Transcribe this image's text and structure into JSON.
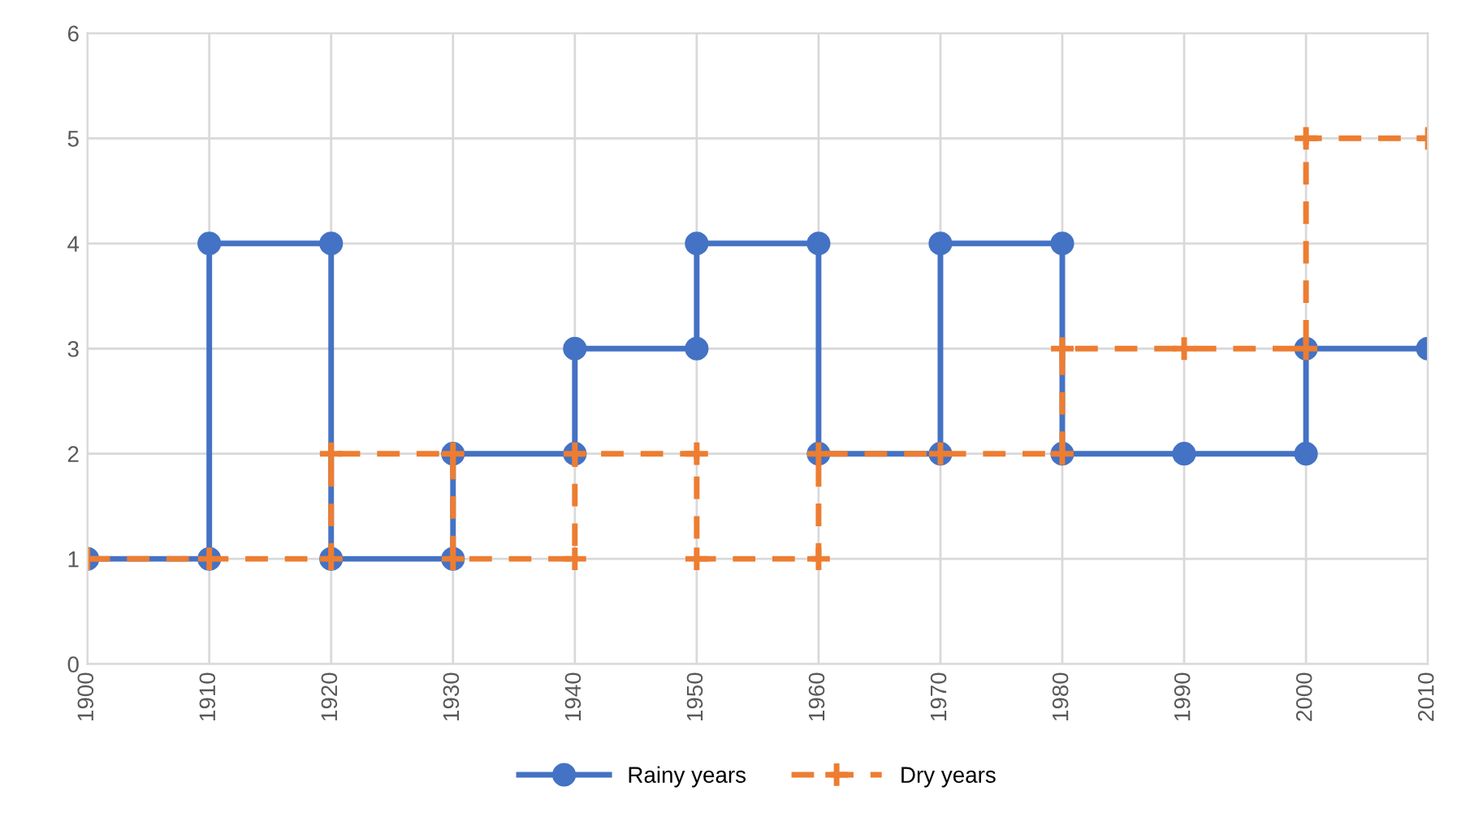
{
  "chart_data": {
    "type": "line",
    "xlim": [
      1900,
      2010
    ],
    "xticks": [
      1900,
      1910,
      1920,
      1930,
      1940,
      1950,
      1960,
      1970,
      1980,
      1990,
      2000,
      2010
    ],
    "ylim": [
      0,
      6
    ],
    "yticks": [
      0,
      1,
      2,
      3,
      4,
      5,
      6
    ],
    "grid": true,
    "legend": "bottom",
    "series": [
      {
        "name": "Rainy years",
        "color": "#4472c4",
        "marker": "circle",
        "line_style": "solid",
        "x": [
          1900,
          1910,
          1910,
          1920,
          1920,
          1930,
          1930,
          1940,
          1940,
          1950,
          1950,
          1960,
          1960,
          1970,
          1970,
          1980,
          1980,
          1990,
          2000,
          2000,
          2010
        ],
        "values": [
          1,
          1,
          4,
          4,
          1,
          1,
          2,
          2,
          3,
          3,
          4,
          4,
          2,
          2,
          4,
          4,
          2,
          2,
          2,
          3,
          3
        ]
      },
      {
        "name": "Dry years",
        "color": "#ed7d31",
        "marker": "cross",
        "line_style": "dashed",
        "x": [
          1900,
          1910,
          1920,
          1920,
          1930,
          1930,
          1940,
          1940,
          1950,
          1950,
          1960,
          1960,
          1970,
          1980,
          1980,
          1990,
          2000,
          2000,
          2010
        ],
        "values": [
          1,
          1,
          1,
          2,
          2,
          1,
          1,
          2,
          2,
          1,
          1,
          2,
          2,
          2,
          3,
          3,
          3,
          5,
          5
        ]
      }
    ]
  }
}
